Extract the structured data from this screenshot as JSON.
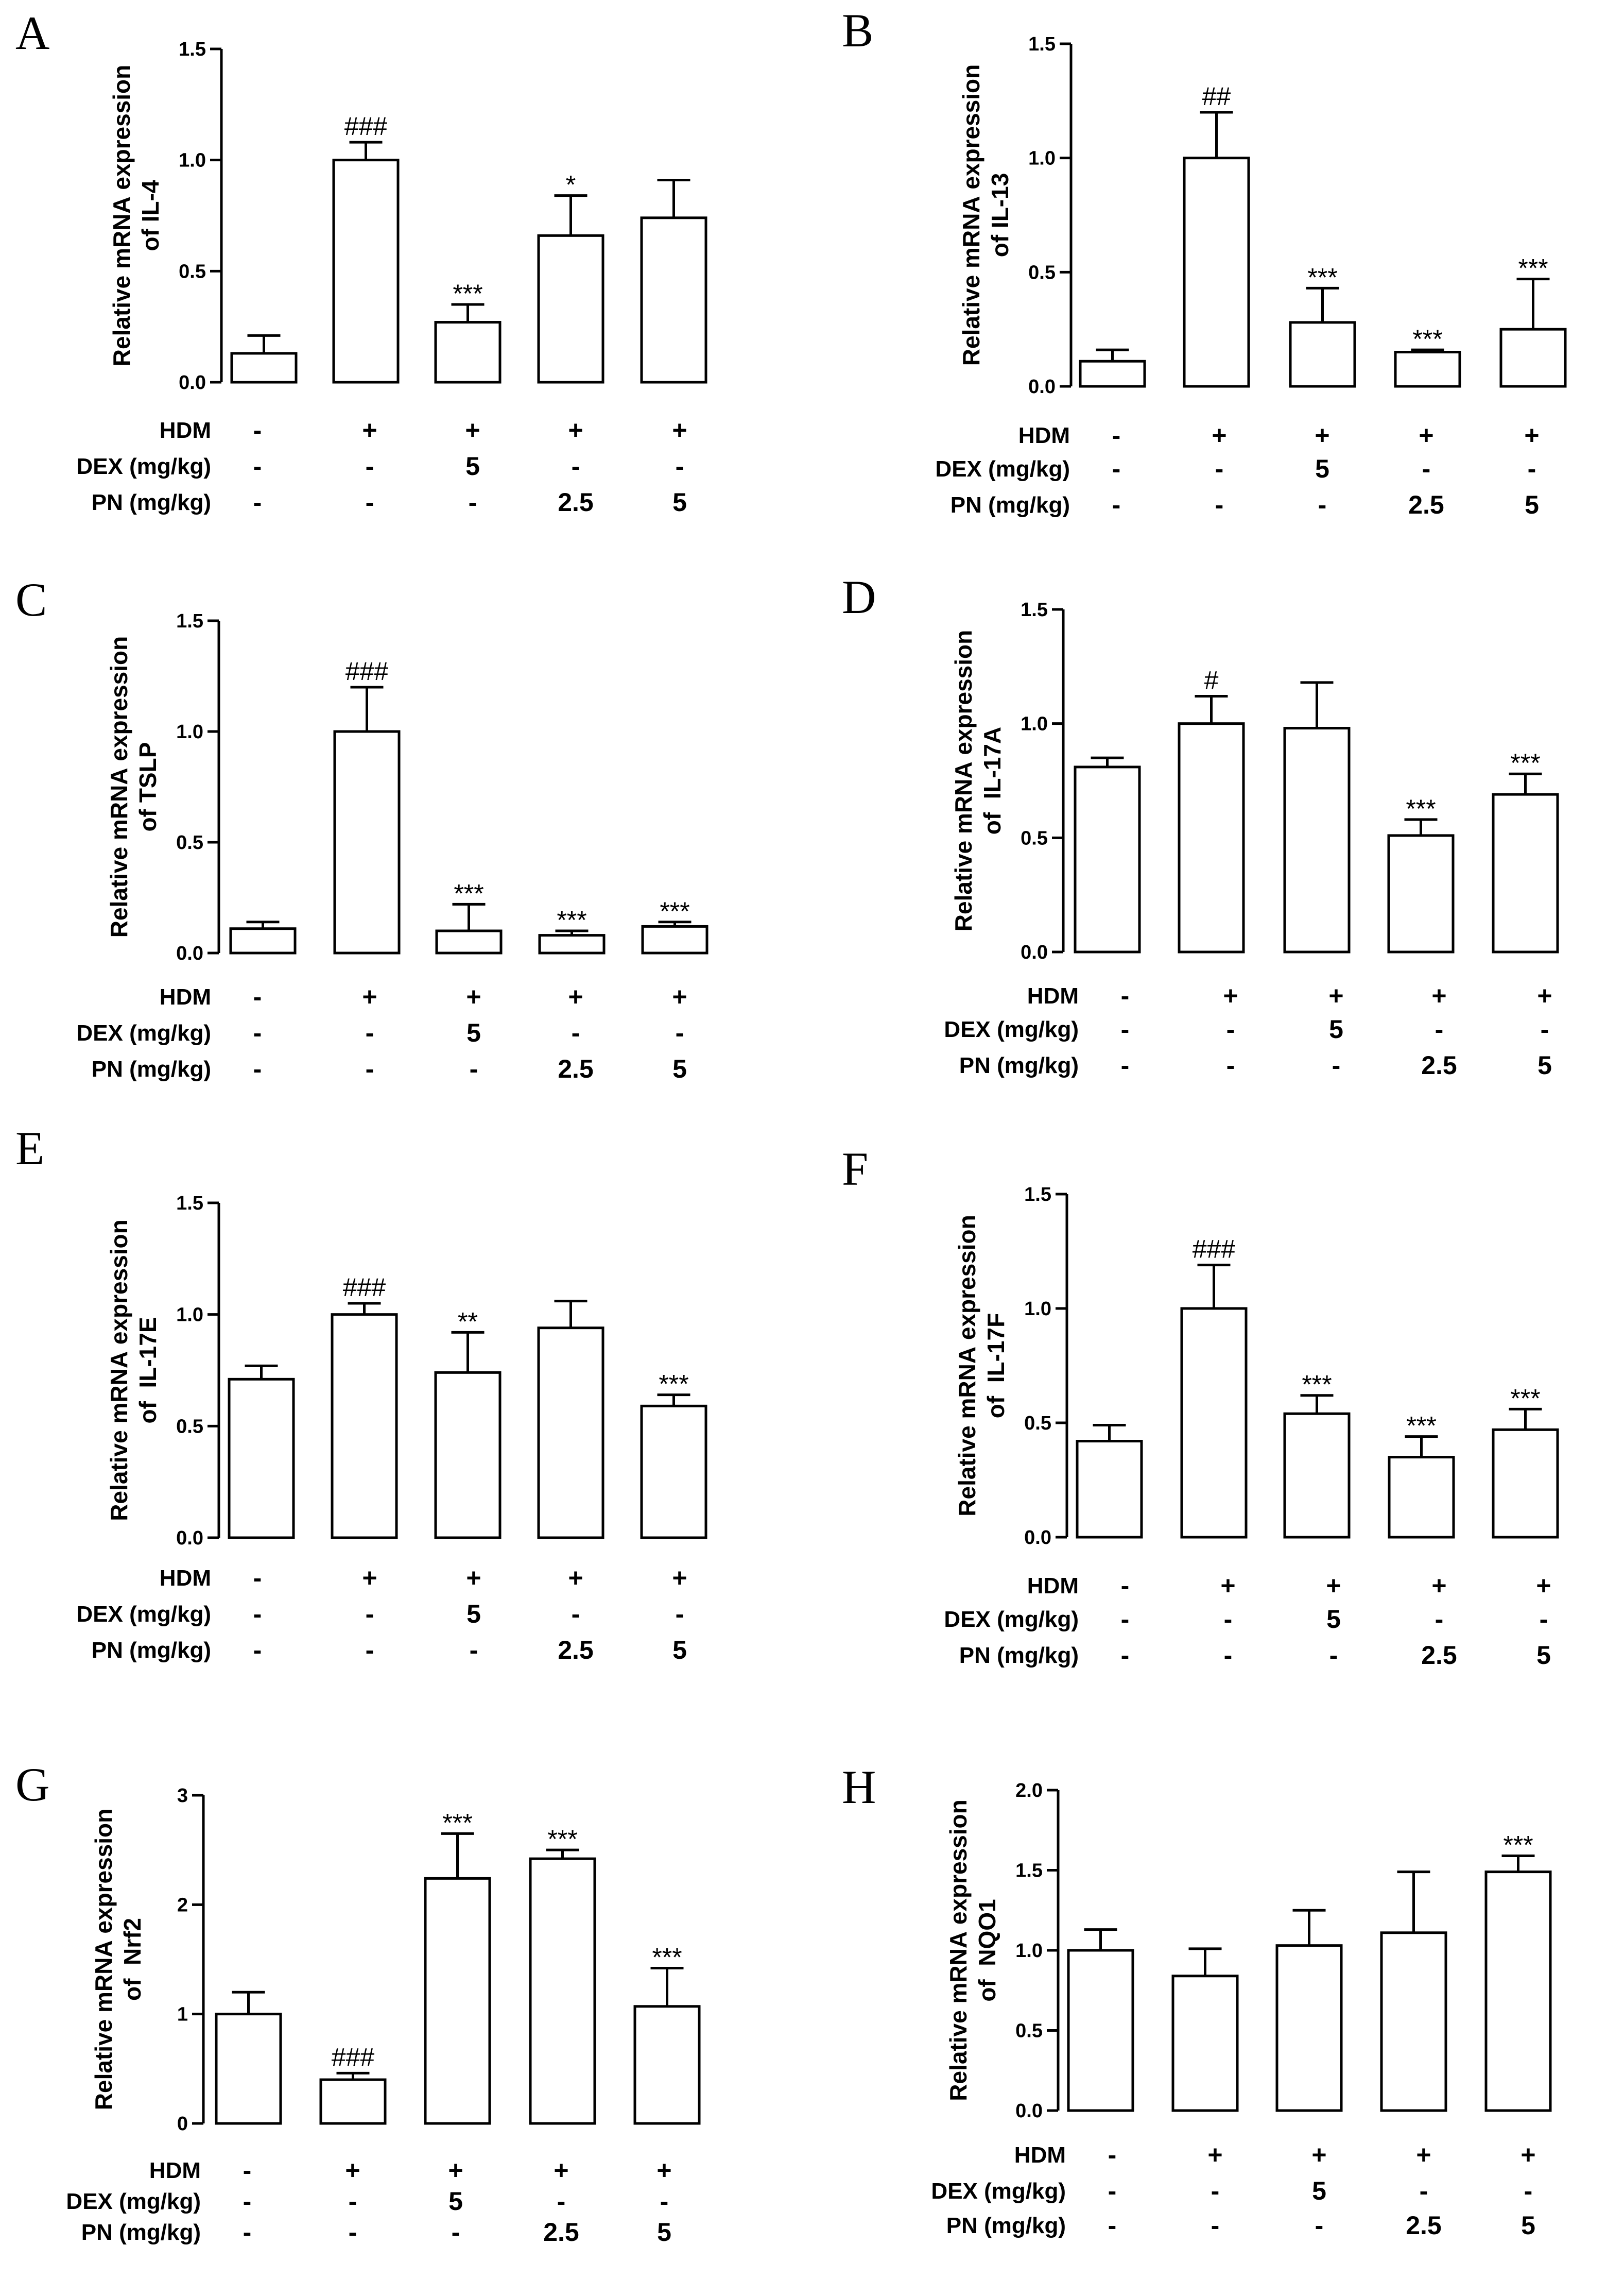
{
  "conditions": {
    "row_labels": [
      "HDM",
      "DEX (mg/kg)",
      "PN (mg/kg)"
    ],
    "HDM": [
      "-",
      "+",
      "+",
      "+",
      "+"
    ],
    "DEX": [
      "-",
      "-",
      "5",
      "-",
      "-"
    ],
    "PN": [
      "-",
      "-",
      "-",
      "2.5",
      "5"
    ]
  },
  "chart_data": [
    {
      "type": "bar",
      "panel": "A",
      "ylabel_lines": [
        "Relative mRNA expression",
        "of IL-4"
      ],
      "ylim": [
        0,
        1.5
      ],
      "ticks": [
        "0.0",
        "0.5",
        "1.0",
        "1.5"
      ],
      "values": [
        0.13,
        1.0,
        0.27,
        0.66,
        0.74
      ],
      "errors": [
        0.08,
        0.08,
        0.08,
        0.18,
        0.17
      ],
      "significance": [
        "",
        "###",
        "***",
        "*",
        ""
      ]
    },
    {
      "type": "bar",
      "panel": "B",
      "ylabel_lines": [
        "Relative mRNA expression",
        "of IL-13"
      ],
      "ylim": [
        0,
        1.5
      ],
      "ticks": [
        "0.0",
        "0.5",
        "1.0",
        "1.5"
      ],
      "values": [
        0.11,
        1.0,
        0.28,
        0.15,
        0.25
      ],
      "errors": [
        0.05,
        0.2,
        0.15,
        0.01,
        0.22
      ],
      "significance": [
        "",
        "##",
        "***",
        "***",
        "***"
      ]
    },
    {
      "type": "bar",
      "panel": "C",
      "ylabel_lines": [
        "Relative mRNA expression",
        "of TSLP"
      ],
      "ylim": [
        0,
        1.5
      ],
      "ticks": [
        "0.0",
        "0.5",
        "1.0",
        "1.5"
      ],
      "values": [
        0.11,
        1.0,
        0.1,
        0.08,
        0.12
      ],
      "errors": [
        0.03,
        0.2,
        0.12,
        0.02,
        0.02
      ],
      "significance": [
        "",
        "###",
        "***",
        "***",
        "***"
      ]
    },
    {
      "type": "bar",
      "panel": "D",
      "ylabel_lines": [
        "Relative mRNA expression",
        "of  IL-17A"
      ],
      "ylim": [
        0,
        1.5
      ],
      "ticks": [
        "0.0",
        "0.5",
        "1.0",
        "1.5"
      ],
      "values": [
        0.81,
        1.0,
        0.98,
        0.51,
        0.69
      ],
      "errors": [
        0.04,
        0.12,
        0.2,
        0.07,
        0.09
      ],
      "significance": [
        "",
        "#",
        "",
        "***",
        "***"
      ]
    },
    {
      "type": "bar",
      "panel": "E",
      "ylabel_lines": [
        "Relative mRNA expression",
        "of  IL-17E"
      ],
      "ylim": [
        0,
        1.5
      ],
      "ticks": [
        "0.0",
        "0.5",
        "1.0",
        "1.5"
      ],
      "values": [
        0.71,
        1.0,
        0.74,
        0.94,
        0.59
      ],
      "errors": [
        0.06,
        0.05,
        0.18,
        0.12,
        0.05
      ],
      "significance": [
        "",
        "###",
        "**",
        "",
        "***"
      ]
    },
    {
      "type": "bar",
      "panel": "F",
      "ylabel_lines": [
        "Relative mRNA expression",
        "of  IL-17F"
      ],
      "ylim": [
        0,
        1.5
      ],
      "ticks": [
        "0.0",
        "0.5",
        "1.0",
        "1.5"
      ],
      "values": [
        0.42,
        1.0,
        0.54,
        0.35,
        0.47
      ],
      "errors": [
        0.07,
        0.19,
        0.08,
        0.09,
        0.09
      ],
      "significance": [
        "",
        "###",
        "***",
        "***",
        "***"
      ]
    },
    {
      "type": "bar",
      "panel": "G",
      "ylabel_lines": [
        "Relative mRNA expression",
        "of  Nrf2"
      ],
      "ylim": [
        0,
        3
      ],
      "ticks": [
        "0",
        "1",
        "2",
        "3"
      ],
      "values": [
        1.0,
        0.4,
        2.24,
        2.42,
        1.07
      ],
      "errors": [
        0.2,
        0.06,
        0.41,
        0.08,
        0.35
      ],
      "significance": [
        "",
        "###",
        "***",
        "***",
        "***"
      ]
    },
    {
      "type": "bar",
      "panel": "H",
      "ylabel_lines": [
        "Relative mRNA expression",
        "of  NQO1"
      ],
      "ylim": [
        0,
        2.0
      ],
      "ticks": [
        "0.0",
        "0.5",
        "1.0",
        "1.5",
        "2.0"
      ],
      "values": [
        1.0,
        0.84,
        1.03,
        1.11,
        1.49
      ],
      "errors": [
        0.13,
        0.17,
        0.22,
        0.38,
        0.1
      ],
      "significance": [
        "",
        "",
        "",
        "",
        "***"
      ]
    }
  ]
}
